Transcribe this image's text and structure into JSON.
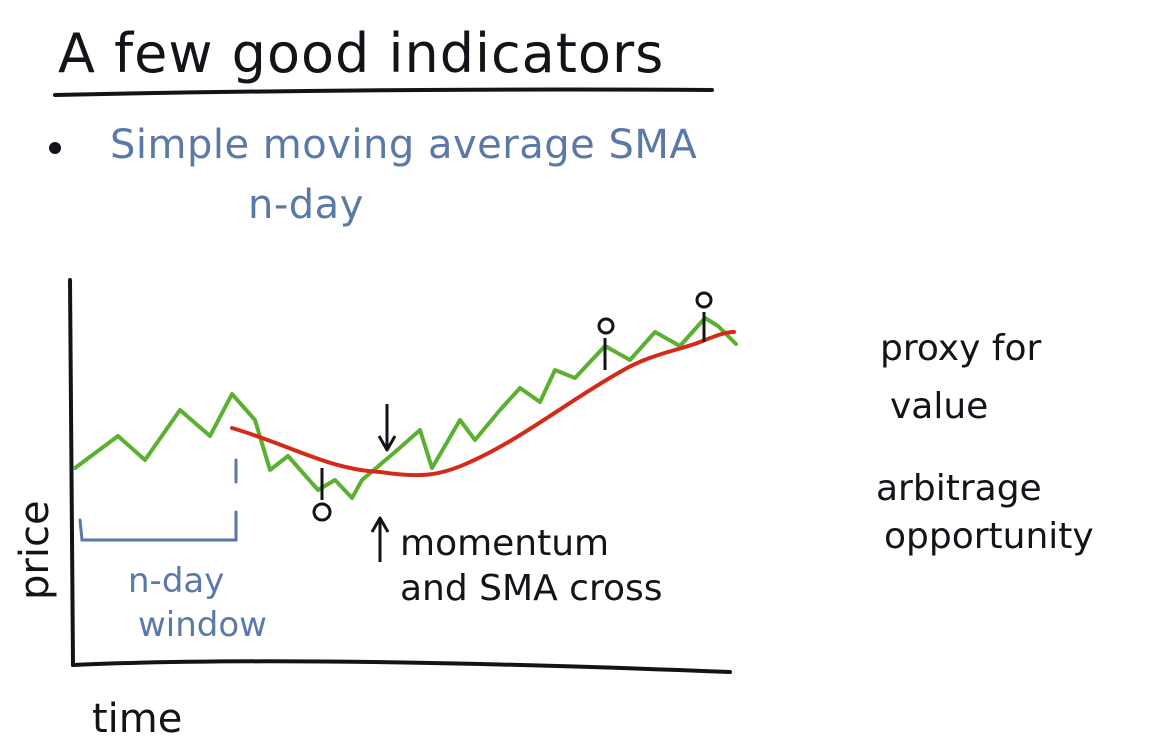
{
  "title": "A few good indicators",
  "bullet": {
    "line1": "Simple moving average SMA",
    "line2": "n-day"
  },
  "chart": {
    "ylabel": "price",
    "xlabel": "time",
    "window_label_line1": "n-day",
    "window_label_line2": "window",
    "cross_note_line1": "momentum",
    "cross_note_line2": "and SMA cross"
  },
  "side_notes": {
    "note1_line1": "proxy for",
    "note1_line2": "value",
    "note2_line1": "arbitrage",
    "note2_line2": "opportunity"
  },
  "colors": {
    "ink": "#111418",
    "blue": "#5b79a8",
    "price_line": "#5bb030",
    "sma_line": "#d62a18"
  }
}
